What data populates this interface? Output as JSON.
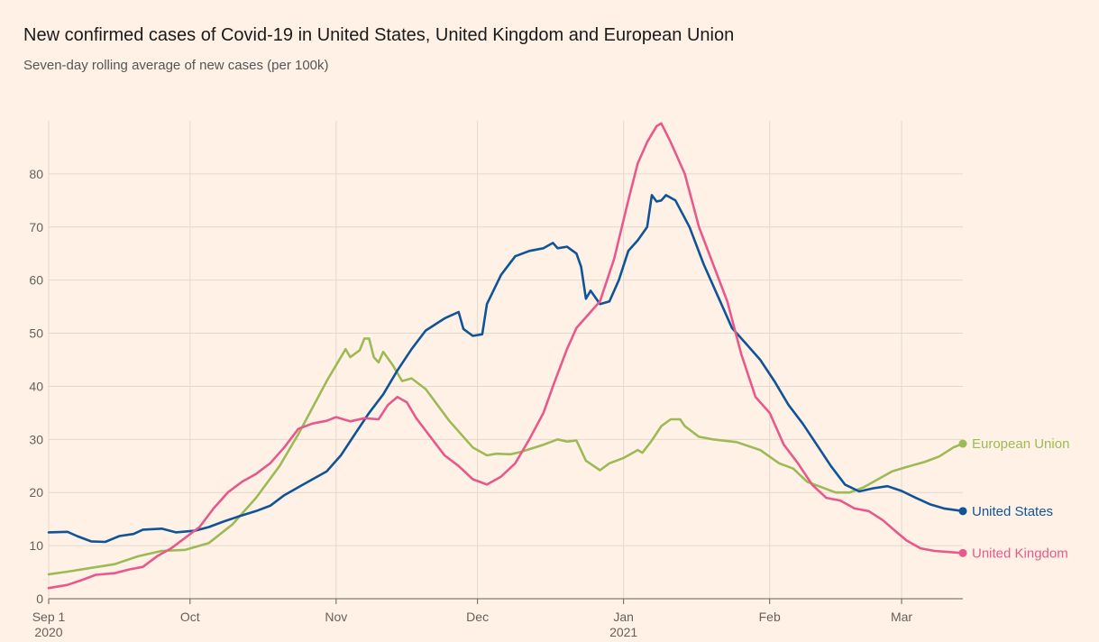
{
  "chart_data": {
    "type": "line",
    "title": "New confirmed cases of Covid-19 in United States, United Kingdom and European Union",
    "subtitle": "Seven-day rolling average of new cases (per 100k)",
    "xlabel": "",
    "ylabel": "",
    "ylim": [
      0,
      90
    ],
    "yticks": [
      0,
      10,
      20,
      30,
      40,
      50,
      60,
      70,
      80
    ],
    "x_range": [
      "2020-09-01",
      "2021-03-14"
    ],
    "xticks": [
      {
        "date": "2020-09-01",
        "label": "Sep 1",
        "sublabel": "2020"
      },
      {
        "date": "2020-10-01",
        "label": "Oct",
        "sublabel": ""
      },
      {
        "date": "2020-11-01",
        "label": "Nov",
        "sublabel": ""
      },
      {
        "date": "2020-12-01",
        "label": "Dec",
        "sublabel": ""
      },
      {
        "date": "2021-01-01",
        "label": "Jan",
        "sublabel": "2021"
      },
      {
        "date": "2021-02-01",
        "label": "Feb",
        "sublabel": ""
      },
      {
        "date": "2021-03-01",
        "label": "Mar",
        "sublabel": ""
      }
    ],
    "grid": true,
    "legend": "direct labels at line ends (right)",
    "series": [
      {
        "name": "European Union",
        "color": "#9cbb56",
        "points": [
          [
            "2020-09-01",
            4.6
          ],
          [
            "2020-09-05",
            5.1
          ],
          [
            "2020-09-10",
            5.8
          ],
          [
            "2020-09-15",
            6.5
          ],
          [
            "2020-09-20",
            8.0
          ],
          [
            "2020-09-25",
            9.0
          ],
          [
            "2020-09-30",
            9.2
          ],
          [
            "2020-10-05",
            10.5
          ],
          [
            "2020-10-10",
            14.0
          ],
          [
            "2020-10-15",
            19.0
          ],
          [
            "2020-10-20",
            25.0
          ],
          [
            "2020-10-24",
            31.0
          ],
          [
            "2020-10-27",
            36.0
          ],
          [
            "2020-10-30",
            41.0
          ],
          [
            "2020-11-02",
            45.5
          ],
          [
            "2020-11-03",
            47.0
          ],
          [
            "2020-11-04",
            45.5
          ],
          [
            "2020-11-06",
            46.8
          ],
          [
            "2020-11-07",
            49.0
          ],
          [
            "2020-11-08",
            49.0
          ],
          [
            "2020-11-09",
            45.5
          ],
          [
            "2020-11-10",
            44.5
          ],
          [
            "2020-11-11",
            46.5
          ],
          [
            "2020-11-13",
            44.0
          ],
          [
            "2020-11-15",
            41.0
          ],
          [
            "2020-11-17",
            41.5
          ],
          [
            "2020-11-20",
            39.5
          ],
          [
            "2020-11-25",
            33.5
          ],
          [
            "2020-11-30",
            28.5
          ],
          [
            "2020-12-03",
            27.0
          ],
          [
            "2020-12-05",
            27.3
          ],
          [
            "2020-12-08",
            27.2
          ],
          [
            "2020-12-10",
            27.6
          ],
          [
            "2020-12-15",
            29.0
          ],
          [
            "2020-12-18",
            30.0
          ],
          [
            "2020-12-20",
            29.6
          ],
          [
            "2020-12-22",
            29.8
          ],
          [
            "2020-12-24",
            26.0
          ],
          [
            "2020-12-27",
            24.2
          ],
          [
            "2020-12-29",
            25.5
          ],
          [
            "2021-01-01",
            26.5
          ],
          [
            "2021-01-04",
            28.0
          ],
          [
            "2021-01-05",
            27.5
          ],
          [
            "2021-01-07",
            29.8
          ],
          [
            "2021-01-09",
            32.5
          ],
          [
            "2021-01-11",
            33.8
          ],
          [
            "2021-01-13",
            33.8
          ],
          [
            "2021-01-14",
            32.5
          ],
          [
            "2021-01-17",
            30.5
          ],
          [
            "2021-01-20",
            30.0
          ],
          [
            "2021-01-25",
            29.5
          ],
          [
            "2021-01-30",
            28.0
          ],
          [
            "2021-02-03",
            25.5
          ],
          [
            "2021-02-06",
            24.5
          ],
          [
            "2021-02-09",
            22.0
          ],
          [
            "2021-02-12",
            21.0
          ],
          [
            "2021-02-15",
            20.0
          ],
          [
            "2021-02-18",
            20.0
          ],
          [
            "2021-02-21",
            21.0
          ],
          [
            "2021-02-24",
            22.5
          ],
          [
            "2021-02-27",
            24.0
          ],
          [
            "2021-03-02",
            24.8
          ],
          [
            "2021-03-06",
            25.8
          ],
          [
            "2021-03-09",
            26.8
          ],
          [
            "2021-03-12",
            28.5
          ],
          [
            "2021-03-14",
            29.2
          ]
        ]
      },
      {
        "name": "United States",
        "color": "#0f5499",
        "points": [
          [
            "2020-09-01",
            12.5
          ],
          [
            "2020-09-05",
            12.6
          ],
          [
            "2020-09-07",
            11.8
          ],
          [
            "2020-09-10",
            10.8
          ],
          [
            "2020-09-13",
            10.7
          ],
          [
            "2020-09-16",
            11.8
          ],
          [
            "2020-09-19",
            12.2
          ],
          [
            "2020-09-21",
            13.0
          ],
          [
            "2020-09-25",
            13.2
          ],
          [
            "2020-09-28",
            12.5
          ],
          [
            "2020-10-02",
            12.8
          ],
          [
            "2020-10-05",
            13.5
          ],
          [
            "2020-10-08",
            14.5
          ],
          [
            "2020-10-11",
            15.4
          ],
          [
            "2020-10-15",
            16.5
          ],
          [
            "2020-10-18",
            17.5
          ],
          [
            "2020-10-21",
            19.5
          ],
          [
            "2020-10-25",
            21.5
          ],
          [
            "2020-10-30",
            24.0
          ],
          [
            "2020-11-02",
            27.0
          ],
          [
            "2020-11-05",
            31.0
          ],
          [
            "2020-11-08",
            35.0
          ],
          [
            "2020-11-11",
            38.5
          ],
          [
            "2020-11-14",
            43.0
          ],
          [
            "2020-11-17",
            47.0
          ],
          [
            "2020-11-20",
            50.5
          ],
          [
            "2020-11-24",
            52.8
          ],
          [
            "2020-11-27",
            54.0
          ],
          [
            "2020-11-28",
            50.8
          ],
          [
            "2020-11-30",
            49.5
          ],
          [
            "2020-12-02",
            49.8
          ],
          [
            "2020-12-03",
            55.5
          ],
          [
            "2020-12-06",
            61.0
          ],
          [
            "2020-12-09",
            64.5
          ],
          [
            "2020-12-12",
            65.5
          ],
          [
            "2020-12-15",
            66.0
          ],
          [
            "2020-12-17",
            67.0
          ],
          [
            "2020-12-18",
            66.0
          ],
          [
            "2020-12-20",
            66.3
          ],
          [
            "2020-12-22",
            65.0
          ],
          [
            "2020-12-23",
            62.5
          ],
          [
            "2020-12-24",
            56.5
          ],
          [
            "2020-12-25",
            58.0
          ],
          [
            "2020-12-27",
            55.5
          ],
          [
            "2020-12-29",
            56.0
          ],
          [
            "2020-12-31",
            60.0
          ],
          [
            "2021-01-02",
            65.5
          ],
          [
            "2021-01-04",
            67.5
          ],
          [
            "2021-01-06",
            70.0
          ],
          [
            "2021-01-07",
            76.0
          ],
          [
            "2021-01-08",
            74.8
          ],
          [
            "2021-01-09",
            75.0
          ],
          [
            "2021-01-10",
            76.0
          ],
          [
            "2021-01-12",
            75.0
          ],
          [
            "2021-01-15",
            70.0
          ],
          [
            "2021-01-18",
            63.0
          ],
          [
            "2021-01-21",
            57.0
          ],
          [
            "2021-01-24",
            51.0
          ],
          [
            "2021-01-27",
            48.0
          ],
          [
            "2021-01-30",
            45.0
          ],
          [
            "2021-02-02",
            41.0
          ],
          [
            "2021-02-05",
            36.5
          ],
          [
            "2021-02-08",
            33.0
          ],
          [
            "2021-02-11",
            29.0
          ],
          [
            "2021-02-14",
            25.0
          ],
          [
            "2021-02-17",
            21.5
          ],
          [
            "2021-02-20",
            20.2
          ],
          [
            "2021-02-23",
            20.8
          ],
          [
            "2021-02-26",
            21.2
          ],
          [
            "2021-03-01",
            20.3
          ],
          [
            "2021-03-04",
            19.0
          ],
          [
            "2021-03-07",
            17.8
          ],
          [
            "2021-03-10",
            17.0
          ],
          [
            "2021-03-14",
            16.5
          ]
        ]
      },
      {
        "name": "United Kingdom",
        "color": "#e8598b",
        "points": [
          [
            "2020-09-01",
            2.0
          ],
          [
            "2020-09-05",
            2.6
          ],
          [
            "2020-09-08",
            3.5
          ],
          [
            "2020-09-11",
            4.5
          ],
          [
            "2020-09-15",
            4.8
          ],
          [
            "2020-09-18",
            5.5
          ],
          [
            "2020-09-21",
            6.0
          ],
          [
            "2020-09-24",
            8.0
          ],
          [
            "2020-09-27",
            9.5
          ],
          [
            "2020-09-30",
            11.5
          ],
          [
            "2020-10-03",
            13.5
          ],
          [
            "2020-10-06",
            17.0
          ],
          [
            "2020-10-09",
            20.0
          ],
          [
            "2020-10-12",
            22.0
          ],
          [
            "2020-10-15",
            23.5
          ],
          [
            "2020-10-18",
            25.5
          ],
          [
            "2020-10-21",
            28.5
          ],
          [
            "2020-10-24",
            32.0
          ],
          [
            "2020-10-27",
            33.0
          ],
          [
            "2020-10-30",
            33.5
          ],
          [
            "2020-11-01",
            34.2
          ],
          [
            "2020-11-04",
            33.4
          ],
          [
            "2020-11-07",
            34.0
          ],
          [
            "2020-11-10",
            33.8
          ],
          [
            "2020-11-12",
            36.5
          ],
          [
            "2020-11-14",
            38.0
          ],
          [
            "2020-11-16",
            37.0
          ],
          [
            "2020-11-18",
            34.0
          ],
          [
            "2020-11-21",
            30.5
          ],
          [
            "2020-11-24",
            27.0
          ],
          [
            "2020-11-27",
            25.0
          ],
          [
            "2020-11-30",
            22.5
          ],
          [
            "2020-12-03",
            21.5
          ],
          [
            "2020-12-06",
            23.0
          ],
          [
            "2020-12-09",
            25.5
          ],
          [
            "2020-12-12",
            30.0
          ],
          [
            "2020-12-15",
            35.0
          ],
          [
            "2020-12-17",
            40.0
          ],
          [
            "2020-12-20",
            47.0
          ],
          [
            "2020-12-22",
            51.0
          ],
          [
            "2020-12-24",
            53.0
          ],
          [
            "2020-12-27",
            56.0
          ],
          [
            "2020-12-30",
            64.0
          ],
          [
            "2021-01-02",
            75.0
          ],
          [
            "2021-01-04",
            82.0
          ],
          [
            "2021-01-06",
            86.0
          ],
          [
            "2021-01-08",
            89.0
          ],
          [
            "2021-01-09",
            89.5
          ],
          [
            "2021-01-11",
            86.0
          ],
          [
            "2021-01-14",
            80.0
          ],
          [
            "2021-01-17",
            70.0
          ],
          [
            "2021-01-20",
            63.0
          ],
          [
            "2021-01-23",
            56.0
          ],
          [
            "2021-01-26",
            46.0
          ],
          [
            "2021-01-29",
            38.0
          ],
          [
            "2021-02-01",
            35.0
          ],
          [
            "2021-02-04",
            29.0
          ],
          [
            "2021-02-07",
            25.5
          ],
          [
            "2021-02-10",
            21.5
          ],
          [
            "2021-02-13",
            19.0
          ],
          [
            "2021-02-16",
            18.5
          ],
          [
            "2021-02-19",
            17.0
          ],
          [
            "2021-02-22",
            16.5
          ],
          [
            "2021-02-25",
            14.8
          ],
          [
            "2021-02-28",
            12.5
          ],
          [
            "2021-03-02",
            11.0
          ],
          [
            "2021-03-05",
            9.5
          ],
          [
            "2021-03-08",
            9.0
          ],
          [
            "2021-03-11",
            8.8
          ],
          [
            "2021-03-14",
            8.6
          ]
        ]
      }
    ]
  }
}
